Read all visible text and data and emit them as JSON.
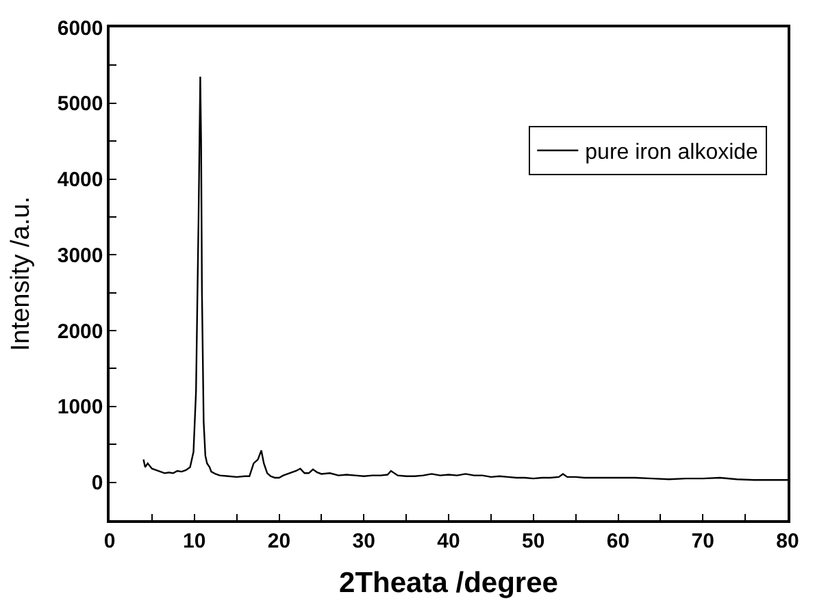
{
  "chart_data": {
    "type": "line",
    "xlabel": "2Theata /degree",
    "ylabel": "Intensity /a.u.",
    "xlim": [
      0,
      80
    ],
    "ylim": [
      -500,
      6000
    ],
    "xticks": [
      0,
      {
        "value": 5,
        "label": null
      },
      10,
      {
        "value": 15,
        "label": null
      },
      20,
      {
        "value": 25,
        "label": null
      },
      30,
      {
        "value": 35,
        "label": null
      },
      40,
      {
        "value": 45,
        "label": null
      },
      50,
      {
        "value": 55,
        "label": null
      },
      60,
      {
        "value": 65,
        "label": null
      },
      70,
      {
        "value": 75,
        "label": null
      },
      80
    ],
    "yticks": [
      {
        "value": -500,
        "label": null
      },
      0,
      {
        "value": 500,
        "label": null
      },
      1000,
      {
        "value": 1500,
        "label": null
      },
      2000,
      {
        "value": 2500,
        "label": null
      },
      3000,
      {
        "value": 3500,
        "label": null
      },
      4000,
      {
        "value": 4500,
        "label": null
      },
      5000,
      {
        "value": 5500,
        "label": null
      },
      6000
    ],
    "legend": "top right",
    "marker": "none",
    "line_style": "solid",
    "series": [
      {
        "name": "pure iron alkoxide",
        "color": "#000000",
        "x": [
          4,
          4.2,
          4.5,
          5,
          5.5,
          6,
          6.5,
          7,
          7.5,
          8,
          8.5,
          9,
          9.5,
          9.9,
          10.2,
          10.5,
          10.7,
          10.8,
          10.9,
          11.1,
          11.3,
          11.5,
          11.8,
          12,
          12.5,
          13,
          14,
          15,
          16,
          16.5,
          17,
          17.5,
          17.9,
          18.2,
          18.6,
          19,
          19.5,
          20,
          20.5,
          21,
          22,
          22.5,
          23,
          23.5,
          24,
          24.5,
          25,
          26,
          27,
          28,
          29,
          30,
          31,
          32,
          32.8,
          33.2,
          34,
          35,
          36,
          37,
          38,
          39,
          40,
          41,
          42,
          43,
          44,
          45,
          46,
          47,
          48,
          49,
          50,
          51,
          52,
          53,
          53.5,
          54,
          55,
          56,
          57,
          58,
          60,
          62,
          64,
          66,
          68,
          70,
          72,
          74,
          76,
          78,
          80
        ],
        "values": [
          300,
          200,
          250,
          180,
          160,
          140,
          120,
          130,
          120,
          150,
          140,
          160,
          200,
          400,
          1200,
          3500,
          5350,
          4500,
          2500,
          800,
          350,
          250,
          200,
          140,
          110,
          90,
          80,
          70,
          80,
          80,
          250,
          300,
          420,
          250,
          120,
          80,
          60,
          60,
          90,
          110,
          150,
          180,
          120,
          120,
          170,
          130,
          110,
          120,
          90,
          100,
          90,
          80,
          90,
          90,
          100,
          150,
          90,
          80,
          80,
          90,
          110,
          90,
          100,
          90,
          110,
          90,
          90,
          70,
          80,
          70,
          60,
          60,
          50,
          60,
          60,
          70,
          110,
          70,
          70,
          60,
          60,
          60,
          60,
          60,
          50,
          40,
          50,
          50,
          60,
          40,
          30,
          30,
          30
        ]
      }
    ]
  }
}
